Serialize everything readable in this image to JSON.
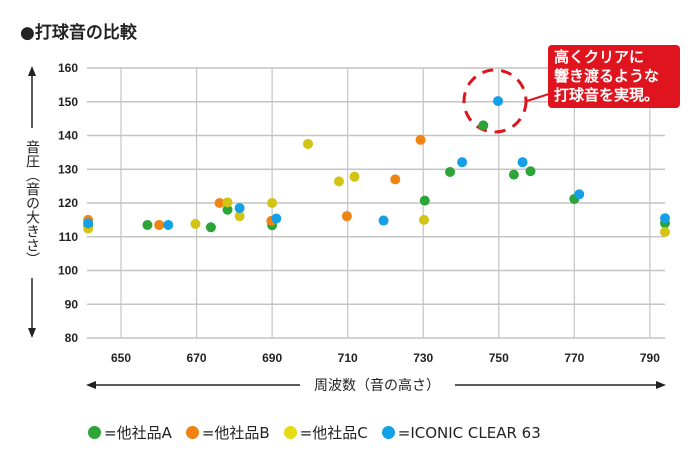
{
  "title": "●打球音の比較",
  "chart_data": {
    "type": "scatter",
    "title": "打球音の比較",
    "xlabel": "周波数（音の高さ）",
    "ylabel": "音圧（音の大きさ）",
    "xlim": [
      641,
      794
    ],
    "ylim": [
      80,
      160
    ],
    "xticks": [
      650,
      670,
      690,
      710,
      730,
      750,
      770,
      790
    ],
    "yticks": [
      80,
      90,
      100,
      110,
      120,
      130,
      140,
      150,
      160
    ],
    "grid": true,
    "legend_position": "bottom",
    "annotation": {
      "lines": [
        "高くクリアに",
        "響き渡るような",
        "打球音を実現。"
      ],
      "target": [
        750,
        150
      ]
    },
    "series": [
      {
        "name": "=他社品A",
        "color": "#2ca438",
        "points": [
          [
            641.3,
            113.3
          ],
          [
            657,
            113.5
          ],
          [
            673.8,
            112.8
          ],
          [
            678.2,
            118
          ],
          [
            690,
            113.4
          ],
          [
            730.4,
            120.7
          ],
          [
            737.1,
            129.2
          ],
          [
            745.9,
            143
          ],
          [
            754,
            128.4
          ],
          [
            758.4,
            129.4
          ],
          [
            770,
            121.2
          ],
          [
            794,
            114
          ]
        ]
      },
      {
        "name": "=他社品B",
        "color": "#f08312",
        "points": [
          [
            641.3,
            115
          ],
          [
            660.1,
            113.5
          ],
          [
            676.1,
            120
          ],
          [
            689.8,
            114.7
          ],
          [
            709.8,
            116.1
          ],
          [
            722.6,
            127
          ],
          [
            729.3,
            138.7
          ]
        ]
      },
      {
        "name": "=他社品C",
        "color": "#d2c414",
        "points": [
          [
            641.3,
            112.4
          ],
          [
            669.7,
            113.8
          ],
          [
            678.2,
            120.2
          ],
          [
            681.4,
            116.1
          ],
          [
            690,
            120
          ],
          [
            699.5,
            137.5
          ],
          [
            707.7,
            126.4
          ],
          [
            711.8,
            127.8
          ],
          [
            730.2,
            115
          ],
          [
            794,
            111.4
          ]
        ]
      },
      {
        "name": "=ICONIC CLEAR 63",
        "color": "#13a0e6",
        "points": [
          [
            641.3,
            114
          ],
          [
            662.5,
            113.5
          ],
          [
            681.4,
            118.5
          ],
          [
            691.1,
            115.4
          ],
          [
            719.5,
            114.8
          ],
          [
            740.3,
            132.1
          ],
          [
            749.8,
            150.2
          ],
          [
            756.3,
            132.1
          ],
          [
            771.3,
            122.6
          ],
          [
            794,
            115.5
          ]
        ]
      }
    ]
  }
}
